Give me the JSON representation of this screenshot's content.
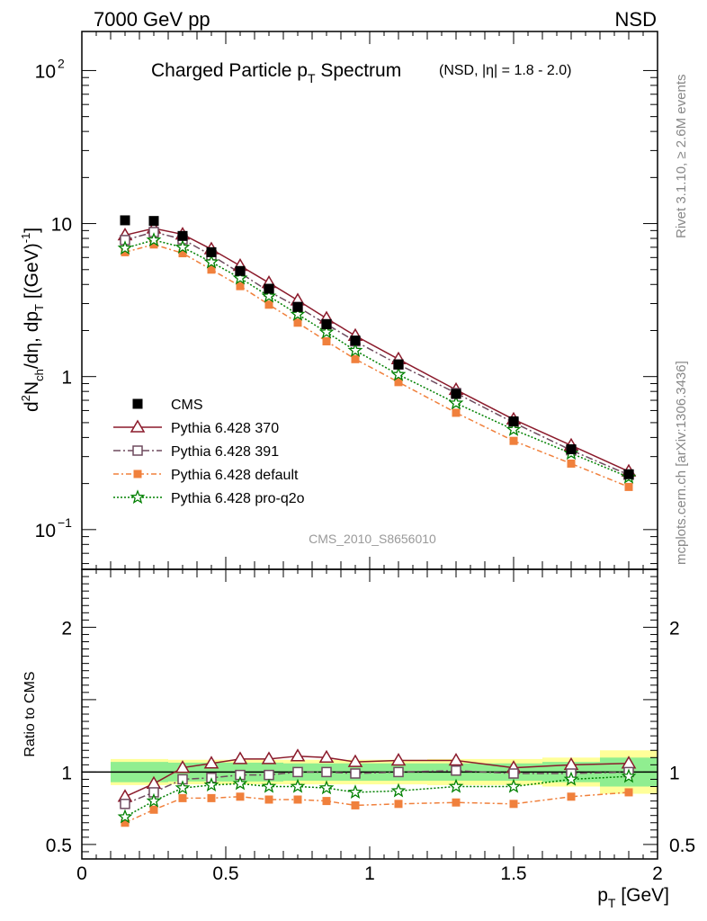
{
  "header": {
    "left_label": "7000 GeV pp",
    "right_label": "NSD"
  },
  "side": {
    "top_text": "Rivet 3.1.10, ≥ 2.6M events",
    "bottom_text": "mcplots.cern.ch [arXiv:1306.3436]"
  },
  "chart_data": {
    "type": "line",
    "title_main": "Charged Particle p",
    "title_sub": "T",
    "title_rest": " Spectrum",
    "title_extra": "(NSD, |η| = 1.8 - 2.0)",
    "analysis_id": "CMS_2010_S8656010",
    "ylabel": "d²Nₕₕ/dη, dpₜ [(GeV)⁻¹]",
    "ylabel_parts": [
      "d",
      "2",
      "N",
      "ch",
      "/dη, dp",
      "T",
      " [(GeV)",
      "-1",
      "]"
    ],
    "xlabel_parts": [
      "p",
      "T",
      " [GeV]"
    ],
    "ratio_ylabel": "Ratio to CMS",
    "xlim": [
      0,
      2
    ],
    "ylim_main": [
      0.055,
      180
    ],
    "ylog_main": true,
    "ylim_ratio": [
      0.4,
      2.4
    ],
    "x_ticks": [
      {
        "v": 0,
        "label": "0"
      },
      {
        "v": 0.5,
        "label": "0.5"
      },
      {
        "v": 1,
        "label": "1"
      },
      {
        "v": 1.5,
        "label": "1.5"
      },
      {
        "v": 2,
        "label": "2"
      }
    ],
    "main_ticks": [
      {
        "v": 0.1,
        "base": "10",
        "exp": "−1"
      },
      {
        "v": 1,
        "base": "1",
        "exp": ""
      },
      {
        "v": 10,
        "base": "10",
        "exp": ""
      },
      {
        "v": 100,
        "base": "10",
        "exp": "2"
      }
    ],
    "ratio_ticks": [
      {
        "v": 0.5,
        "label": "0.5"
      },
      {
        "v": 1,
        "label": "1"
      },
      {
        "v": 2,
        "label": "2"
      }
    ],
    "x": [
      0.15,
      0.25,
      0.35,
      0.45,
      0.55,
      0.65,
      0.75,
      0.85,
      0.95,
      1.1,
      1.3,
      1.5,
      1.7,
      1.9
    ],
    "data": {
      "name": "CMS",
      "values": [
        10.5,
        10.4,
        8.3,
        6.5,
        4.9,
        3.75,
        2.85,
        2.2,
        1.72,
        1.2,
        0.77,
        0.51,
        0.335,
        0.23
      ]
    },
    "bands": {
      "x_edges": [
        0.1,
        0.2,
        0.3,
        0.4,
        0.5,
        0.6,
        0.7,
        0.8,
        0.9,
        1.0,
        1.2,
        1.4,
        1.6,
        1.8,
        2.0
      ],
      "stat_half": [
        0.07,
        0.07,
        0.065,
        0.065,
        0.065,
        0.065,
        0.06,
        0.06,
        0.06,
        0.06,
        0.06,
        0.06,
        0.07,
        0.1
      ],
      "total_half": [
        0.09,
        0.09,
        0.085,
        0.085,
        0.085,
        0.085,
        0.085,
        0.085,
        0.085,
        0.085,
        0.09,
        0.09,
        0.1,
        0.15
      ],
      "stat_color": "#90ee90",
      "total_color": "#ffff99"
    },
    "series": [
      {
        "name": "Pythia 6.428 370",
        "color": "#8b1a2b",
        "marker": "triangle-open",
        "dash": "",
        "values": [
          8.4,
          9.3,
          8.5,
          6.8,
          5.3,
          4.1,
          3.15,
          2.4,
          1.85,
          1.3,
          0.82,
          0.525,
          0.355,
          0.24
        ],
        "ratio": [
          0.83,
          0.92,
          1.03,
          1.06,
          1.09,
          1.09,
          1.11,
          1.1,
          1.07,
          1.08,
          1.08,
          1.03,
          1.05,
          1.06
        ]
      },
      {
        "name": "Pythia 6.428 391",
        "color": "#6e4a5e",
        "marker": "square-open",
        "dash": "8,3,2,3",
        "values": [
          7.8,
          8.8,
          7.9,
          6.2,
          4.75,
          3.6,
          2.85,
          2.2,
          1.7,
          1.2,
          0.78,
          0.5,
          0.33,
          0.228
        ],
        "ratio": [
          0.78,
          0.86,
          0.95,
          0.96,
          0.98,
          0.98,
          1.0,
          1.0,
          0.99,
          1.0,
          1.01,
          0.99,
          0.99,
          1.0
        ]
      },
      {
        "name": "Pythia 6.428 default",
        "color": "#f0803c",
        "marker": "square-filled",
        "dash": "6,3,2,3",
        "values": [
          6.5,
          7.3,
          6.4,
          5.0,
          3.9,
          2.95,
          2.25,
          1.7,
          1.3,
          0.92,
          0.58,
          0.38,
          0.27,
          0.19
        ],
        "ratio": [
          0.65,
          0.74,
          0.82,
          0.82,
          0.83,
          0.81,
          0.81,
          0.8,
          0.77,
          0.78,
          0.79,
          0.78,
          0.83,
          0.86
        ]
      },
      {
        "name": "Pythia 6.428 pro-q2o",
        "color": "#008000",
        "marker": "star",
        "dash": "2,2",
        "values": [
          6.9,
          7.8,
          7.0,
          5.6,
          4.4,
          3.35,
          2.55,
          1.95,
          1.48,
          1.03,
          0.67,
          0.45,
          0.315,
          0.22
        ],
        "ratio": [
          0.69,
          0.8,
          0.89,
          0.91,
          0.92,
          0.9,
          0.9,
          0.89,
          0.86,
          0.87,
          0.9,
          0.9,
          0.95,
          0.97
        ]
      }
    ]
  }
}
